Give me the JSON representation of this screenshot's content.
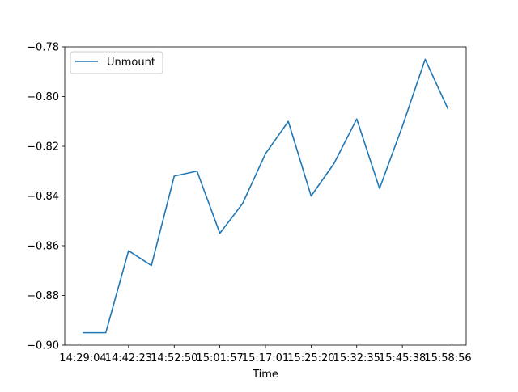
{
  "chart_data": {
    "type": "line",
    "title": "",
    "xlabel": "Time",
    "ylabel": "",
    "x": [
      "14:29:04",
      "",
      "14:42:23",
      "",
      "14:52:50",
      "",
      "15:01:57",
      "",
      "15:17:01",
      "",
      "15:25:20",
      "",
      "15:32:35",
      "",
      "15:45:38",
      "",
      "15:58:56"
    ],
    "xticks": [
      "14:29:04",
      "14:42:23",
      "14:52:50",
      "15:01:57",
      "15:17:01",
      "15:25:20",
      "15:32:35",
      "15:45:38",
      "15:58:56"
    ],
    "ylim": [
      -0.9,
      -0.78
    ],
    "yticks": [
      -0.9,
      -0.88,
      -0.86,
      -0.84,
      -0.82,
      -0.8,
      -0.78
    ],
    "ytick_labels": [
      "−0.90",
      "−0.88",
      "−0.86",
      "−0.84",
      "−0.82",
      "−0.80",
      "−0.78"
    ],
    "series": [
      {
        "name": "Unmount",
        "color": "#1f77b4",
        "values": [
          -0.895,
          -0.895,
          -0.862,
          -0.868,
          -0.832,
          -0.83,
          -0.855,
          -0.843,
          -0.823,
          -0.81,
          -0.84,
          -0.827,
          -0.809,
          -0.837,
          -0.812,
          -0.785,
          -0.805
        ]
      }
    ],
    "legend": "top-left",
    "grid": false
  }
}
